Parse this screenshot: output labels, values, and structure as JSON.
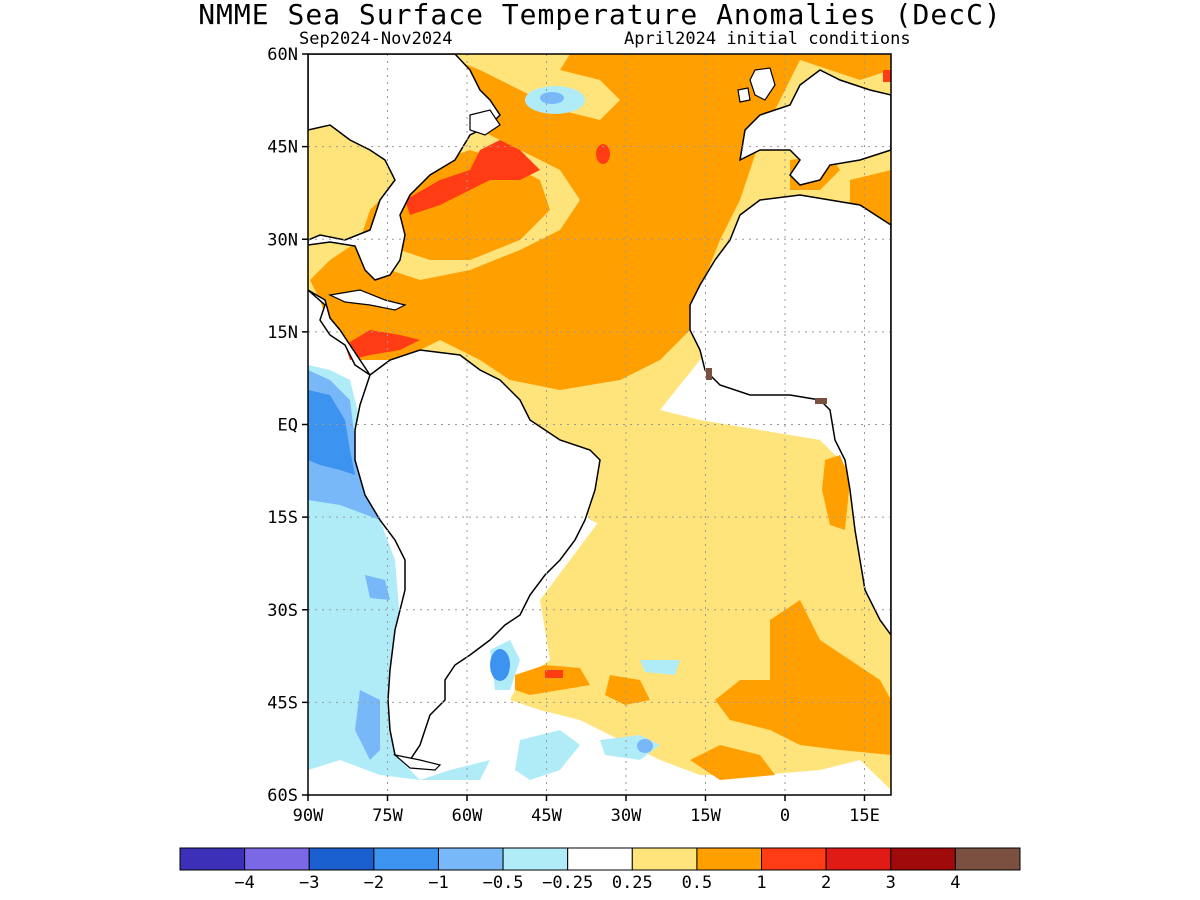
{
  "title": "NMME Sea Surface Temperature Anomalies (DecC)",
  "subtitle_left": "Sep2024-Nov2024",
  "subtitle_right": "April2024 initial conditions",
  "map": {
    "lon_range": [
      -90,
      20
    ],
    "lat_range": [
      -60,
      60
    ],
    "lat_ticks": [
      {
        "lat": 60,
        "label": "60N"
      },
      {
        "lat": 45,
        "label": "45N"
      },
      {
        "lat": 30,
        "label": "30N"
      },
      {
        "lat": 15,
        "label": "15N"
      },
      {
        "lat": 0,
        "label": "EQ"
      },
      {
        "lat": -15,
        "label": "15S"
      },
      {
        "lat": -30,
        "label": "30S"
      },
      {
        "lat": -45,
        "label": "45S"
      },
      {
        "lat": -60,
        "label": "60S"
      }
    ],
    "lon_ticks": [
      {
        "lon": -90,
        "label": "90W"
      },
      {
        "lon": -75,
        "label": "75W"
      },
      {
        "lon": -60,
        "label": "60W"
      },
      {
        "lon": -45,
        "label": "45W"
      },
      {
        "lon": -30,
        "label": "30W"
      },
      {
        "lon": -15,
        "label": "15W"
      },
      {
        "lon": 0,
        "label": "0"
      },
      {
        "lon": 15,
        "label": "15E"
      }
    ],
    "grid": "dotted"
  },
  "colorbar": {
    "colors": [
      "#3c2fb8",
      "#7b68e6",
      "#1a5fd0",
      "#3c93f0",
      "#78b8f8",
      "#b0ecf8",
      "#ffffff",
      "#ffe47c",
      "#ffa000",
      "#ff3c14",
      "#e01a14",
      "#a00a0a",
      "#7a5040"
    ],
    "labels": [
      "−4",
      "−3",
      "−2",
      "−1",
      "−0.5",
      "−0.25",
      "0.25",
      "0.5",
      "1",
      "2",
      "3",
      "4"
    ]
  },
  "legend_colors": {
    "strong_neg": "#3c2fb8",
    "neg": "#1a5fd0",
    "weak_neg": "#b0ecf8",
    "weak_pos": "#ffe47c",
    "pos": "#ffa000",
    "strong_pos": "#ff3c14",
    "land": "#ffffff"
  }
}
